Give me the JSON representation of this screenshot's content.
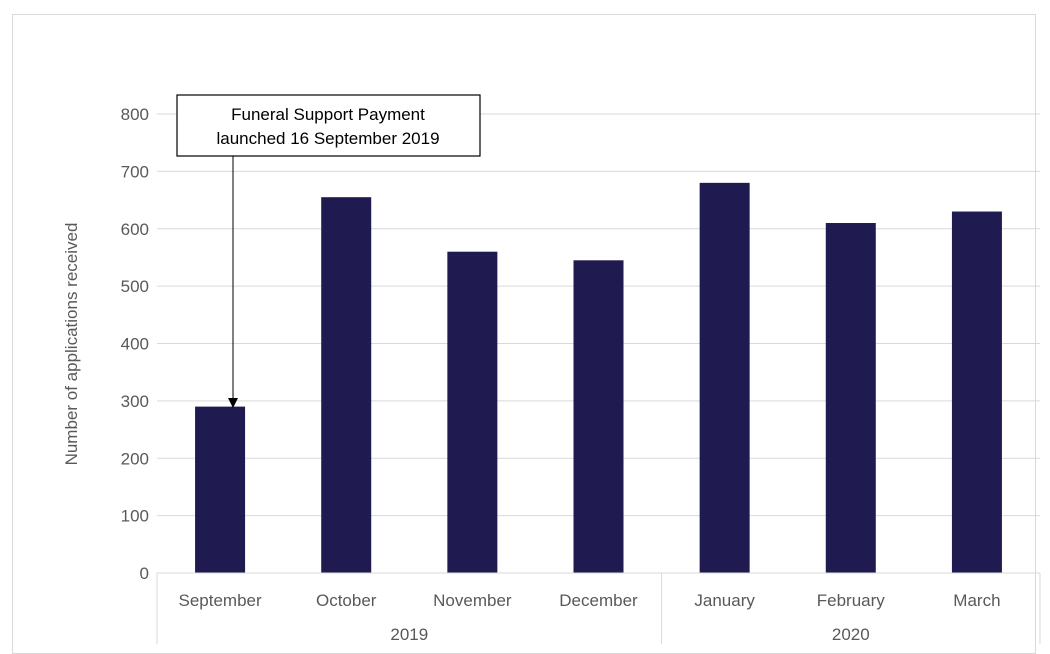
{
  "chart_data": {
    "type": "bar",
    "categories": [
      "September",
      "October",
      "November",
      "December",
      "January",
      "February",
      "March"
    ],
    "groups": [
      {
        "label": "2019",
        "categories": [
          "September",
          "October",
          "November",
          "December"
        ]
      },
      {
        "label": "2020",
        "categories": [
          "January",
          "February",
          "March"
        ]
      }
    ],
    "values": [
      290,
      655,
      560,
      545,
      680,
      610,
      630
    ],
    "ylabel": "Number of applications received",
    "ylim": [
      0,
      800
    ],
    "yticks": [
      0,
      100,
      200,
      300,
      400,
      500,
      600,
      700,
      800
    ],
    "grid": true,
    "bar_color": "#1f1a4f",
    "annotation": {
      "lines": [
        "Funeral Support Payment",
        "launched 16 September 2019"
      ],
      "target_category": "September"
    }
  }
}
